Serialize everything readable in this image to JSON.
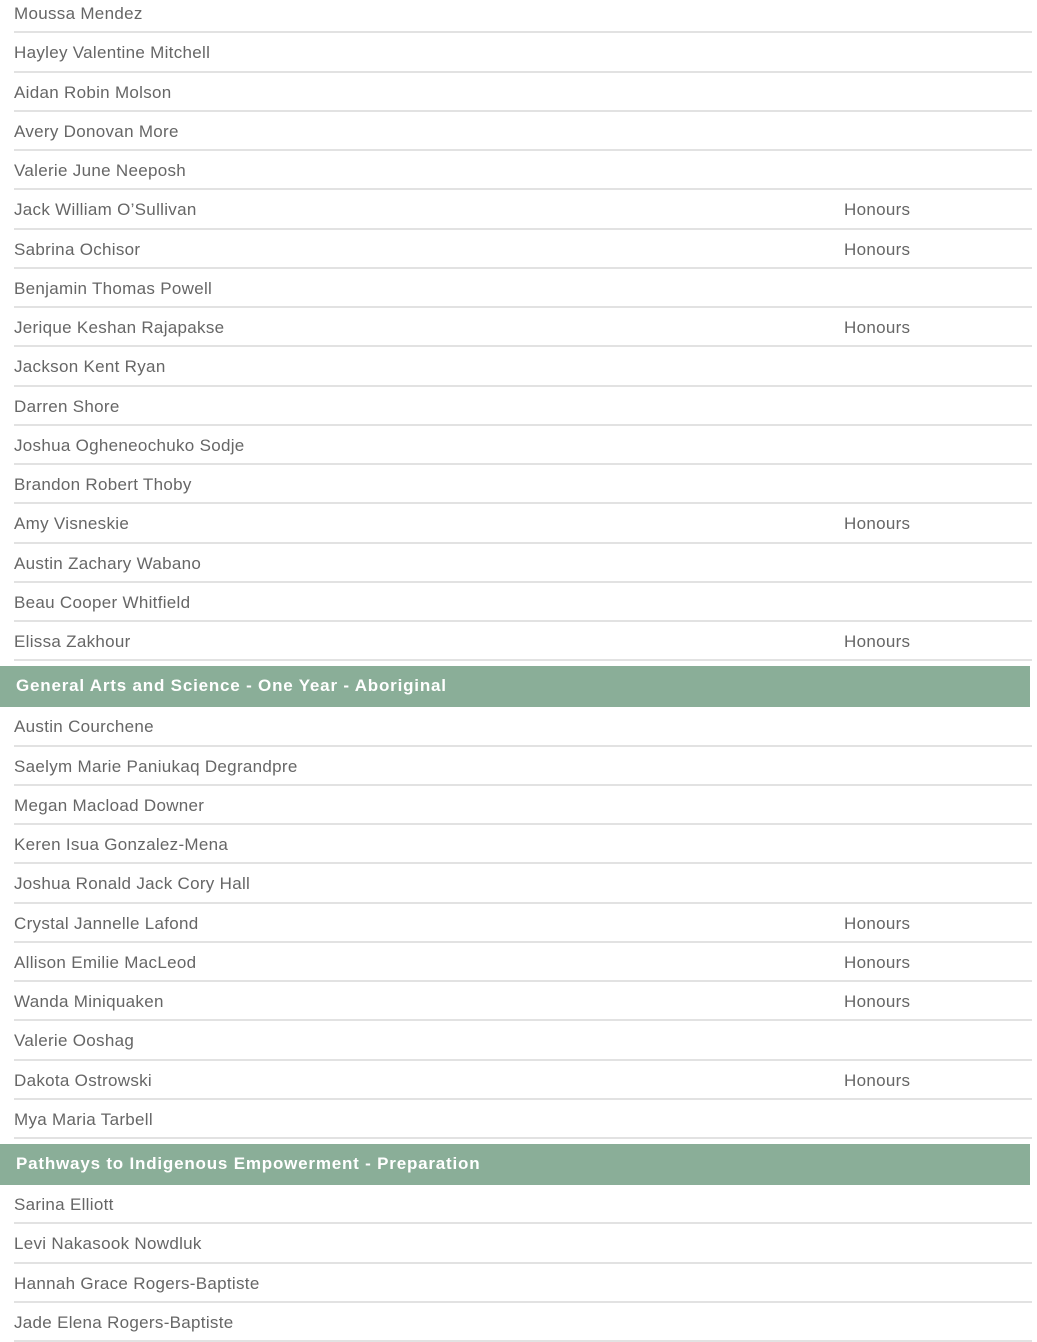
{
  "sections": [
    {
      "title": "",
      "rows": [
        {
          "name": "Moussa Mendez",
          "note": ""
        },
        {
          "name": "Hayley Valentine Mitchell",
          "note": ""
        },
        {
          "name": "Aidan Robin Molson",
          "note": ""
        },
        {
          "name": "Avery Donovan More",
          "note": ""
        },
        {
          "name": "Valerie June Neeposh",
          "note": ""
        },
        {
          "name": "Jack William O’Sullivan",
          "note": "Honours"
        },
        {
          "name": "Sabrina Ochisor",
          "note": "Honours"
        },
        {
          "name": "Benjamin Thomas Powell",
          "note": ""
        },
        {
          "name": "Jerique Keshan Rajapakse",
          "note": "Honours"
        },
        {
          "name": "Jackson Kent Ryan",
          "note": ""
        },
        {
          "name": "Darren Shore",
          "note": ""
        },
        {
          "name": "Joshua Ogheneochuko Sodje",
          "note": ""
        },
        {
          "name": "Brandon Robert Thoby",
          "note": ""
        },
        {
          "name": "Amy Visneskie",
          "note": "Honours"
        },
        {
          "name": "Austin Zachary Wabano",
          "note": ""
        },
        {
          "name": "Beau Cooper Whitfield",
          "note": ""
        },
        {
          "name": "Elissa Zakhour",
          "note": "Honours"
        }
      ]
    },
    {
      "title": "General Arts and Science - One Year - Aboriginal",
      "rows": [
        {
          "name": "Austin  Courchene",
          "note": ""
        },
        {
          "name": "Saelym Marie Paniukaq Degrandpre",
          "note": ""
        },
        {
          "name": "Megan Macload Downer",
          "note": ""
        },
        {
          "name": "Keren Isua Gonzalez-Mena",
          "note": ""
        },
        {
          "name": "Joshua Ronald Jack Cory Hall",
          "note": ""
        },
        {
          "name": "Crystal Jannelle Lafond",
          "note": "Honours"
        },
        {
          "name": "Allison Emilie MacLeod",
          "note": "Honours"
        },
        {
          "name": "Wanda Miniquaken",
          "note": "Honours"
        },
        {
          "name": "Valerie Ooshag",
          "note": ""
        },
        {
          "name": "Dakota Ostrowski",
          "note": "Honours"
        },
        {
          "name": "Mya Maria Tarbell",
          "note": ""
        }
      ]
    },
    {
      "title": "Pathways to Indigenous Empowerment - Preparation",
      "rows": [
        {
          "name": "Sarina Elliott",
          "note": ""
        },
        {
          "name": "Levi Nakasook Nowdluk",
          "note": ""
        },
        {
          "name": "Hannah Grace Rogers-Baptiste",
          "note": ""
        },
        {
          "name": "Jade Elena Rogers-Baptiste",
          "note": ""
        }
      ]
    }
  ],
  "colors": {
    "header_bg": "#8aae98",
    "text": "#666666"
  }
}
